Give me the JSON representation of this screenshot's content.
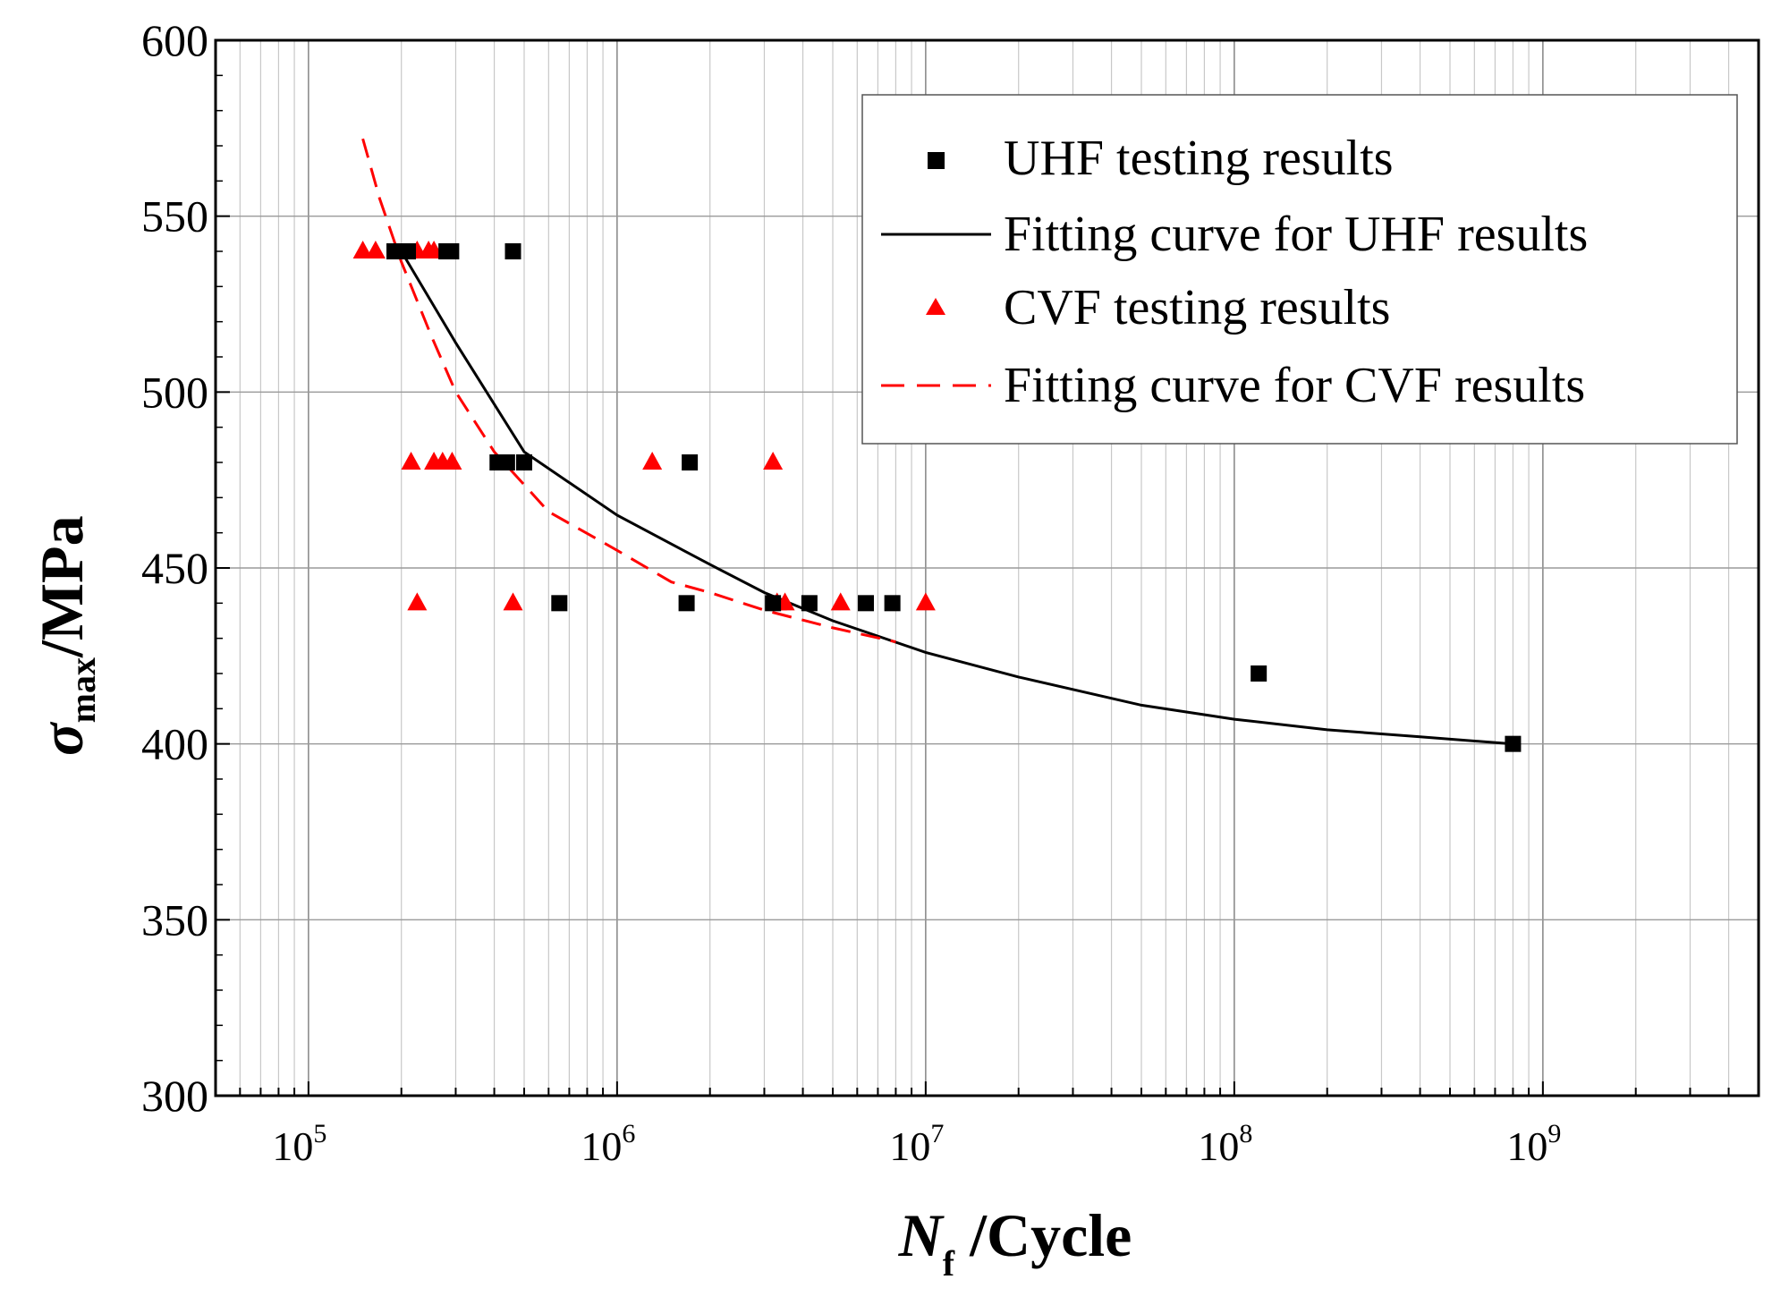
{
  "chart_data": {
    "type": "scatter",
    "title": "",
    "xscale": "log",
    "xlim": [
      50000,
      5000000000
    ],
    "ylim": [
      300,
      600
    ],
    "x_ticks": [
      {
        "base": "10",
        "exp": "5"
      },
      {
        "base": "10",
        "exp": "6"
      },
      {
        "base": "10",
        "exp": "7"
      },
      {
        "base": "10",
        "exp": "8"
      },
      {
        "base": "10",
        "exp": "9"
      }
    ],
    "y_ticks": [
      "300",
      "350",
      "400",
      "450",
      "500",
      "550",
      "600"
    ],
    "xlabel": {
      "main": "N",
      "sub": "f",
      "rest": " /Cycle"
    },
    "ylabel": {
      "main": "σ",
      "sub": "max",
      "rest": "/MPa"
    },
    "grid": true,
    "legend_position": "top-right",
    "legend": [
      {
        "label": "UHF testing results",
        "marker": "square",
        "color": "#000000"
      },
      {
        "label": "Fitting curve for UHF results",
        "line": "solid",
        "color": "#000000"
      },
      {
        "label": "CVF testing results",
        "marker": "triangle",
        "color": "#ff0000"
      },
      {
        "label": "Fitting curve for CVF results",
        "line": "dashed",
        "color": "#ff0000"
      }
    ],
    "series": [
      {
        "name": "UHF testing results",
        "kind": "scatter",
        "marker": "square",
        "color": "#000000",
        "points": [
          [
            190000,
            540
          ],
          [
            200000,
            540
          ],
          [
            210000,
            540
          ],
          [
            280000,
            540
          ],
          [
            290000,
            540
          ],
          [
            460000,
            540
          ],
          [
            410000,
            480
          ],
          [
            440000,
            480
          ],
          [
            500000,
            480
          ],
          [
            1720000,
            480
          ],
          [
            650000,
            440
          ],
          [
            1680000,
            440
          ],
          [
            3200000,
            440
          ],
          [
            4200000,
            440
          ],
          [
            6400000,
            440
          ],
          [
            7800000,
            440
          ],
          [
            120000000,
            420
          ],
          [
            800000000,
            400
          ]
        ]
      },
      {
        "name": "CVF testing results",
        "kind": "scatter",
        "marker": "triangle",
        "color": "#ff0000",
        "points": [
          [
            150000,
            540
          ],
          [
            165000,
            540
          ],
          [
            225000,
            540
          ],
          [
            245000,
            540
          ],
          [
            255000,
            540
          ],
          [
            215000,
            480
          ],
          [
            255000,
            480
          ],
          [
            272000,
            480
          ],
          [
            292000,
            480
          ],
          [
            1300000,
            480
          ],
          [
            3200000,
            480
          ],
          [
            225000,
            440
          ],
          [
            460000,
            440
          ],
          [
            3300000,
            440
          ],
          [
            3500000,
            440
          ],
          [
            5300000,
            440
          ],
          [
            10000000,
            440
          ]
        ]
      },
      {
        "name": "Fitting curve for UHF results",
        "kind": "line",
        "style": "solid",
        "color": "#000000",
        "points": [
          [
            200000,
            540
          ],
          [
            300000,
            514
          ],
          [
            500000,
            483
          ],
          [
            1000000,
            465
          ],
          [
            2000000,
            451
          ],
          [
            3000000,
            443
          ],
          [
            5000000,
            435
          ],
          [
            10000000,
            426
          ],
          [
            20000000,
            419
          ],
          [
            50000000,
            411
          ],
          [
            100000000,
            407
          ],
          [
            200000000,
            404
          ],
          [
            400000000,
            402
          ],
          [
            800000000,
            400
          ]
        ]
      },
      {
        "name": "Fitting curve for CVF results",
        "kind": "line",
        "style": "dashed",
        "color": "#ff0000",
        "points": [
          [
            150000,
            572
          ],
          [
            170000,
            555
          ],
          [
            200000,
            537
          ],
          [
            250000,
            516
          ],
          [
            300000,
            500
          ],
          [
            400000,
            483
          ],
          [
            600000,
            466
          ],
          [
            1000000,
            455
          ],
          [
            1500000,
            446
          ],
          [
            2000000,
            443
          ],
          [
            3000000,
            438
          ],
          [
            5000000,
            433
          ],
          [
            8000000,
            429
          ]
        ]
      }
    ]
  }
}
